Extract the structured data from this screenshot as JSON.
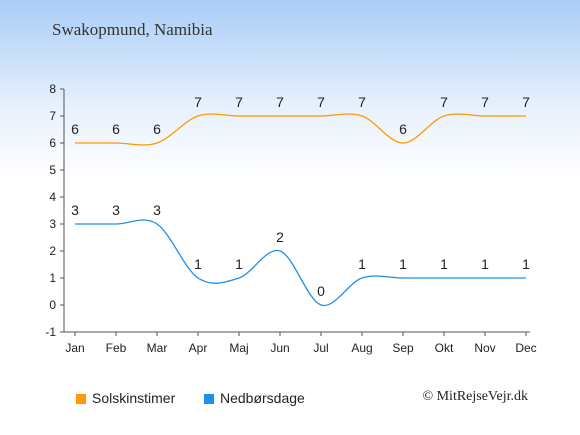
{
  "chart_data": {
    "type": "line",
    "title": "Swakopmund, Namibia",
    "categories": [
      "Jan",
      "Feb",
      "Mar",
      "Apr",
      "Maj",
      "Jun",
      "Jul",
      "Aug",
      "Sep",
      "Okt",
      "Nov",
      "Dec"
    ],
    "ylim": [
      -1,
      8
    ],
    "yticks": [
      "-1",
      "0",
      "1",
      "2",
      "3",
      "4",
      "5",
      "6",
      "7",
      "8"
    ],
    "grid": false,
    "legend": "bottom-left",
    "series": [
      {
        "name": "Solskinstimer",
        "color": "#ff9900",
        "values": [
          6,
          6,
          6,
          7,
          7,
          7,
          7,
          7,
          6,
          7,
          7,
          7
        ]
      },
      {
        "name": "Nedbørsdage",
        "color": "#1e90e8",
        "values": [
          3,
          3,
          3,
          1,
          1,
          2,
          0,
          1,
          1,
          1,
          1,
          1
        ]
      }
    ]
  },
  "copyright": "© MitRejseVejr.dk"
}
